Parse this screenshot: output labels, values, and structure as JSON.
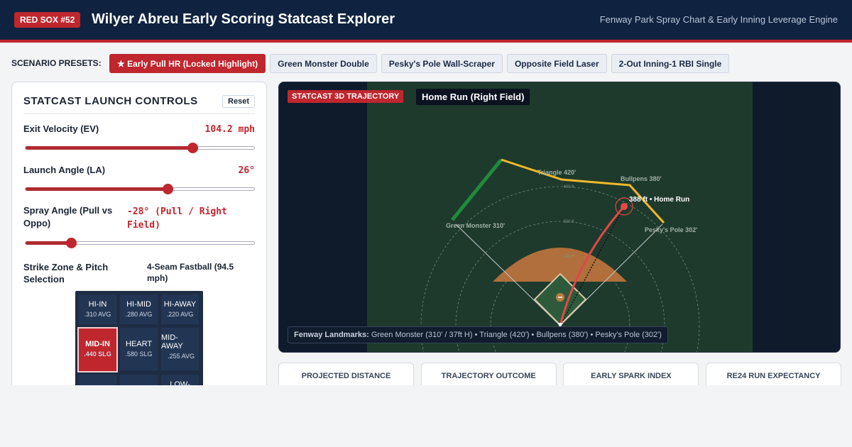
{
  "header": {
    "badge": "RED SOX #52",
    "title": "Wilyer Abreu Early Scoring Statcast Explorer",
    "subtitle": "Fenway Park Spray Chart & Early Inning Leverage Engine"
  },
  "presets": {
    "label": "SCENARIO PRESETS:",
    "items": [
      "★ Early Pull HR (Locked Highlight)",
      "Green Monster Double",
      "Pesky's Pole Wall-Scraper",
      "Opposite Field Laser",
      "2-Out Inning-1 RBI Single"
    ]
  },
  "controls": {
    "title": "STATCAST LAUNCH CONTROLS",
    "reset": "Reset",
    "sliders": [
      {
        "label": "Exit Velocity (EV)",
        "value": "104.2 mph"
      },
      {
        "label": "Launch Angle (LA)",
        "value": "26°"
      },
      {
        "label": "Spray Angle (Pull vs Oppo)",
        "value": "-28° (Pull / Right Field)"
      }
    ],
    "pitch": {
      "label": "Strike Zone & Pitch Selection",
      "value": "4-Seam Fastball (94.5 mph)"
    },
    "zones": [
      {
        "name": "HI-IN",
        "stat": ".310 AVG"
      },
      {
        "name": "HI-MID",
        "stat": ".280 AVG"
      },
      {
        "name": "HI-AWAY",
        "stat": ".220 AVG"
      },
      {
        "name": "MID-IN",
        "stat": ".440 SLG"
      },
      {
        "name": "HEART",
        "stat": ".580 SLG"
      },
      {
        "name": "MID-AWAY",
        "stat": ".255 AVG"
      },
      {
        "name": "LOW-AWAY"
      }
    ]
  },
  "trajectory": {
    "badge": "STATCAST 3D TRAJECTORY",
    "title": "Home Run (Right Field)",
    "landmarks": {
      "triangle": "Triangle 420'",
      "bullpens": "Bullpens 380'",
      "monster": "Green Monster 310'",
      "pesky": "Pesky's Pole 302'",
      "result": "388 ft • Home Run"
    },
    "rings": [
      "400 ft",
      "300 ft",
      "200 ft"
    ],
    "footer": {
      "label": "Fenway Landmarks:",
      "text": "Green Monster (310' / 37ft H) • Triangle (420') • Bullpens (380') • Pesky's Pole (302')"
    }
  },
  "metrics": [
    "PROJECTED DISTANCE",
    "TRAJECTORY OUTCOME",
    "EARLY SPARK INDEX",
    "RE24 RUN EXPECTANCY"
  ]
}
